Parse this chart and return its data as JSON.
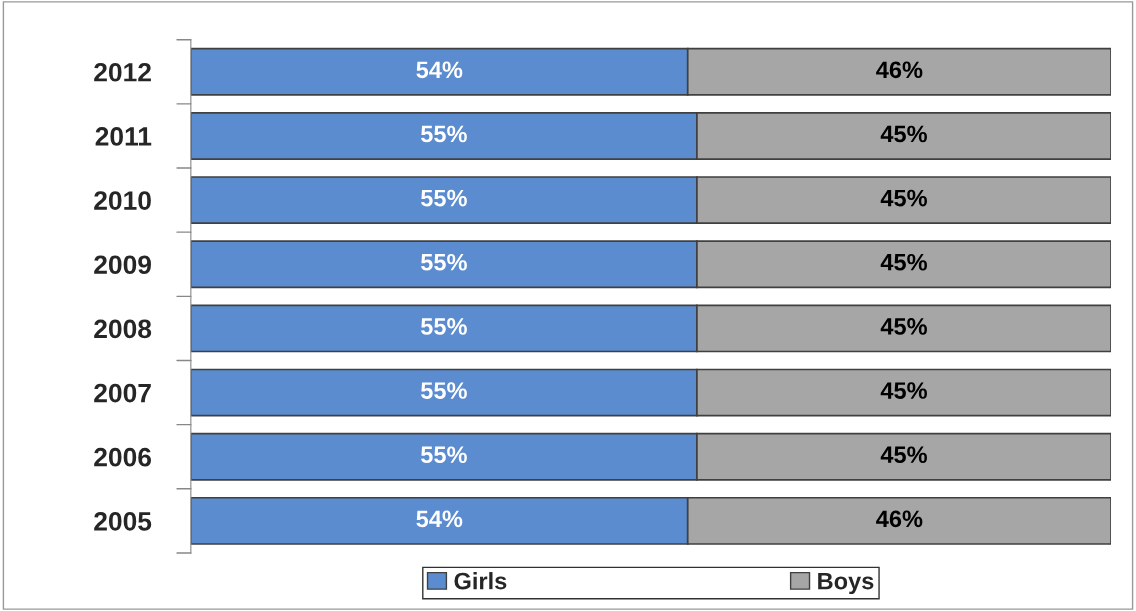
{
  "chart_data": {
    "type": "bar",
    "orientation": "horizontal",
    "stacked": true,
    "categories": [
      "2012",
      "2011",
      "2010",
      "2009",
      "2008",
      "2007",
      "2006",
      "2005"
    ],
    "series": [
      {
        "name": "Girls",
        "color": "#5a8ccf",
        "values": [
          54,
          55,
          55,
          55,
          55,
          55,
          55,
          54
        ],
        "value_labels": [
          "54%",
          "55%",
          "55%",
          "55%",
          "55%",
          "55%",
          "55%",
          "54%"
        ]
      },
      {
        "name": "Boys",
        "color": "#a6a6a6",
        "values": [
          46,
          45,
          45,
          45,
          45,
          45,
          45,
          46
        ],
        "value_labels": [
          "46%",
          "45%",
          "45%",
          "45%",
          "45%",
          "45%",
          "45%",
          "46%"
        ]
      }
    ],
    "xlim": [
      0,
      100
    ],
    "tick_labels": "y",
    "legend": "bottom",
    "grid": false
  }
}
